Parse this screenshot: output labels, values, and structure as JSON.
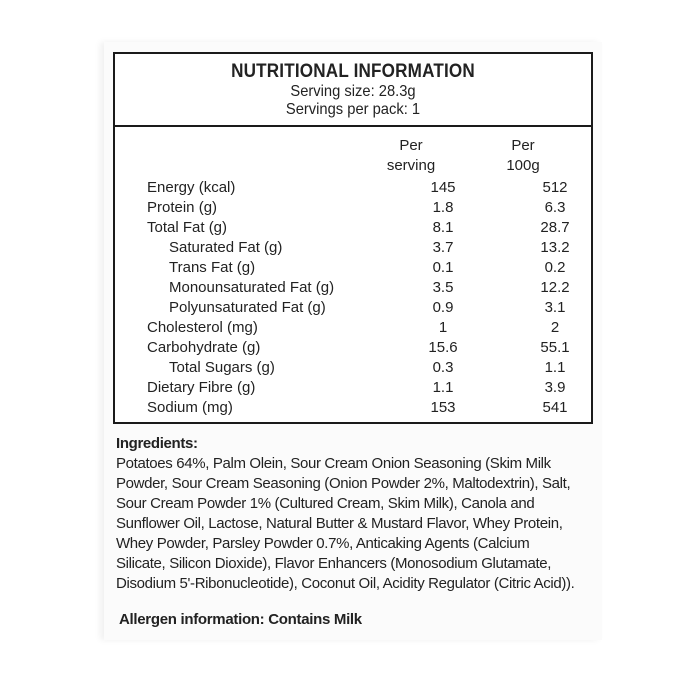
{
  "panel": {
    "title": "NUTRITIONAL INFORMATION",
    "serving_size": "Serving size: 28.3g",
    "servings_per_pack": "Servings per pack: 1",
    "col_serving": [
      "Per",
      "serving"
    ],
    "col_100g": [
      "Per",
      "100g"
    ],
    "rows": [
      {
        "label": "Energy (kcal)",
        "indent": false,
        "per_serving": "145",
        "per_100g": "512"
      },
      {
        "label": "Protein (g)",
        "indent": false,
        "per_serving": "1.8",
        "per_100g": "6.3"
      },
      {
        "label": "Total Fat (g)",
        "indent": false,
        "per_serving": "8.1",
        "per_100g": "28.7"
      },
      {
        "label": "Saturated Fat (g)",
        "indent": true,
        "per_serving": "3.7",
        "per_100g": "13.2"
      },
      {
        "label": "Trans Fat (g)",
        "indent": true,
        "per_serving": "0.1",
        "per_100g": "0.2"
      },
      {
        "label": "Monounsaturated Fat (g)",
        "indent": true,
        "per_serving": "3.5",
        "per_100g": "12.2"
      },
      {
        "label": "Polyunsaturated Fat (g)",
        "indent": true,
        "per_serving": "0.9",
        "per_100g": "3.1"
      },
      {
        "label": "Cholesterol (mg)",
        "indent": false,
        "per_serving": "1",
        "per_100g": "2"
      },
      {
        "label": "Carbohydrate (g)",
        "indent": false,
        "per_serving": "15.6",
        "per_100g": "55.1"
      },
      {
        "label": "Total Sugars (g)",
        "indent": true,
        "per_serving": "0.3",
        "per_100g": "1.1"
      },
      {
        "label": "Dietary Fibre (g)",
        "indent": false,
        "per_serving": "1.1",
        "per_100g": "3.9"
      },
      {
        "label": "Sodium (mg)",
        "indent": false,
        "per_serving": "153",
        "per_100g": "541"
      }
    ]
  },
  "ingredients": {
    "heading": "Ingredients:",
    "lines": [
      "Potatoes 64%, Palm Olein, Sour Cream Onion Seasoning (Skim Milk",
      "Powder, Sour Cream Seasoning (Onion Powder 2%, Maltodextrin), Salt,",
      "Sour Cream Powder 1% (Cultured Cream, Skim Milk), Canola and",
      "Sunflower Oil, Lactose, Natural Butter & Mustard Flavor, Whey Protein,",
      "Whey Powder, Parsley Powder 0.7%, Anticaking Agents (Calcium",
      "Silicate, Silicon Dioxide), Flavor Enhancers (Monosodium Glutamate,",
      "Disodium 5'-Ribonucleotide), Coconut Oil, Acidity Regulator (Citric Acid))."
    ]
  },
  "allergen": "Allergen information: Contains Milk"
}
